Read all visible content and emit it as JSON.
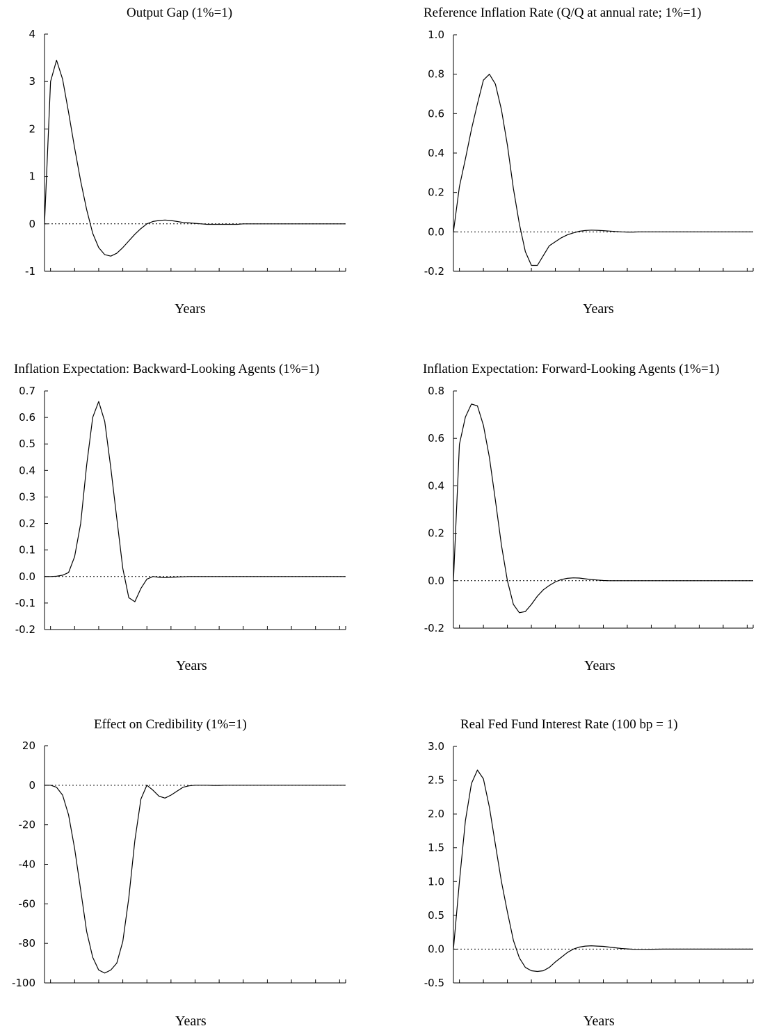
{
  "chart_data": [
    {
      "type": "line",
      "title": "Output Gap (1%=1)",
      "xlabel": "Years",
      "ylabel": "",
      "ylim": [
        -1,
        4
      ],
      "yticks": [
        "4",
        "3",
        "2",
        "1",
        "0",
        "-1"
      ],
      "ytick_values": [
        4,
        3,
        2,
        1,
        0,
        -1
      ],
      "zero_line": "dotted",
      "grid": false,
      "x": [
        0,
        1,
        2,
        3,
        4,
        5,
        6,
        7,
        8,
        9,
        10,
        11,
        12,
        13,
        14,
        15,
        16,
        17,
        18,
        19,
        20,
        21,
        22,
        23,
        24,
        25,
        26,
        27,
        28,
        29,
        30,
        31,
        32,
        33,
        34,
        35,
        36,
        37,
        38,
        39,
        40,
        41,
        42,
        43,
        44,
        45,
        46,
        47,
        48,
        49,
        50
      ],
      "series": [
        {
          "values": [
            0,
            3.0,
            3.45,
            3.05,
            2.35,
            1.6,
            0.9,
            0.3,
            -0.2,
            -0.5,
            -0.65,
            -0.68,
            -0.62,
            -0.5,
            -0.36,
            -0.22,
            -0.1,
            0.0,
            0.05,
            0.07,
            0.08,
            0.07,
            0.05,
            0.03,
            0.02,
            0.01,
            0.0,
            -0.01,
            -0.01,
            -0.01,
            -0.01,
            -0.01,
            -0.01,
            0.0,
            0.0,
            0.0,
            0.0,
            0.0,
            0.0,
            0.0,
            0.0,
            0.0,
            0.0,
            0.0,
            0.0,
            0.0,
            0.0,
            0.0,
            0.0,
            0.0,
            0.0
          ]
        }
      ]
    },
    {
      "type": "line",
      "title": "Reference Inflation Rate (Q/Q at annual rate; 1%=1)",
      "xlabel": "Years",
      "ylabel": "",
      "ylim": [
        -0.2,
        1.0
      ],
      "yticks": [
        "1.0",
        "0.8",
        "0.6",
        "0.4",
        "0.2",
        "0.0",
        "-0.2"
      ],
      "ytick_values": [
        1.0,
        0.8,
        0.6,
        0.4,
        0.2,
        0.0,
        -0.2
      ],
      "zero_line": "dotted",
      "grid": false,
      "x": [
        0,
        1,
        2,
        3,
        4,
        5,
        6,
        7,
        8,
        9,
        10,
        11,
        12,
        13,
        14,
        15,
        16,
        17,
        18,
        19,
        20,
        21,
        22,
        23,
        24,
        25,
        26,
        27,
        28,
        29,
        30,
        31,
        32,
        33,
        34,
        35,
        36,
        37,
        38,
        39,
        40,
        41,
        42,
        43,
        44,
        45,
        46,
        47,
        48,
        49,
        50
      ],
      "series": [
        {
          "values": [
            0,
            0.23,
            0.37,
            0.52,
            0.65,
            0.77,
            0.8,
            0.75,
            0.62,
            0.44,
            0.22,
            0.04,
            -0.1,
            -0.17,
            -0.17,
            -0.12,
            -0.07,
            -0.05,
            -0.03,
            -0.015,
            -0.005,
            0.003,
            0.007,
            0.009,
            0.008,
            0.006,
            0.004,
            0.002,
            0.0,
            -0.001,
            -0.001,
            0.0,
            0.0,
            0.0,
            0.0,
            0.0,
            0.0,
            0.0,
            0.0,
            0.0,
            0.0,
            0.0,
            0.0,
            0.0,
            0.0,
            0.0,
            0.0,
            0.0,
            0.0,
            0.0,
            0.0
          ]
        }
      ]
    },
    {
      "type": "line",
      "title": "Inflation Expectation: Backward-Looking Agents (1%=1)",
      "xlabel": "Years",
      "ylabel": "",
      "ylim": [
        -0.2,
        0.7
      ],
      "yticks": [
        "0.7",
        "0.6",
        "0.5",
        "0.4",
        "0.3",
        "0.2",
        "0.1",
        "0.0",
        "-0.1",
        "-0.2"
      ],
      "ytick_values": [
        0.7,
        0.6,
        0.5,
        0.4,
        0.3,
        0.2,
        0.1,
        0.0,
        -0.1,
        -0.2
      ],
      "zero_line": "dotted",
      "grid": false,
      "x": [
        0,
        1,
        2,
        3,
        4,
        5,
        6,
        7,
        8,
        9,
        10,
        11,
        12,
        13,
        14,
        15,
        16,
        17,
        18,
        19,
        20,
        21,
        22,
        23,
        24,
        25,
        26,
        27,
        28,
        29,
        30,
        31,
        32,
        33,
        34,
        35,
        36,
        37,
        38,
        39,
        40,
        41,
        42,
        43,
        44,
        45,
        46,
        47,
        48,
        49,
        50
      ],
      "series": [
        {
          "values": [
            0,
            0.0,
            0.001,
            0.005,
            0.015,
            0.075,
            0.2,
            0.42,
            0.6,
            0.66,
            0.585,
            0.41,
            0.22,
            0.03,
            -0.08,
            -0.095,
            -0.045,
            -0.01,
            0.0,
            -0.003,
            -0.004,
            -0.003,
            -0.002,
            -0.001,
            0.0,
            0.0,
            0.0,
            0.0,
            0.0,
            0.0,
            0.0,
            0.0,
            0.0,
            0.0,
            0.0,
            0.0,
            0.0,
            0.0,
            0.0,
            0.0,
            0.0,
            0.0,
            0.0,
            0.0,
            0.0,
            0.0,
            0.0,
            0.0,
            0.0,
            0.0,
            0.0
          ]
        }
      ]
    },
    {
      "type": "line",
      "title": "Inflation Expectation: Forward-Looking Agents (1%=1)",
      "xlabel": "Years",
      "ylabel": "",
      "ylim": [
        -0.2,
        0.8
      ],
      "yticks": [
        "0.8",
        "0.6",
        "0.4",
        "0.2",
        "0.0",
        "-0.2"
      ],
      "ytick_values": [
        0.8,
        0.6,
        0.4,
        0.2,
        0.0,
        -0.2
      ],
      "zero_line": "dotted",
      "grid": false,
      "x": [
        0,
        1,
        2,
        3,
        4,
        5,
        6,
        7,
        8,
        9,
        10,
        11,
        12,
        13,
        14,
        15,
        16,
        17,
        18,
        19,
        20,
        21,
        22,
        23,
        24,
        25,
        26,
        27,
        28,
        29,
        30,
        31,
        32,
        33,
        34,
        35,
        36,
        37,
        38,
        39,
        40,
        41,
        42,
        43,
        44,
        45,
        46,
        47,
        48,
        49,
        50
      ],
      "series": [
        {
          "values": [
            0,
            0.575,
            0.69,
            0.745,
            0.737,
            0.655,
            0.52,
            0.34,
            0.15,
            0.0,
            -0.1,
            -0.135,
            -0.13,
            -0.1,
            -0.065,
            -0.038,
            -0.02,
            -0.005,
            0.005,
            0.01,
            0.012,
            0.011,
            0.008,
            0.005,
            0.003,
            0.001,
            0.0,
            0.0,
            0.0,
            0.0,
            0.0,
            0.0,
            0.0,
            0.0,
            0.0,
            0.0,
            0.0,
            0.0,
            0.0,
            0.0,
            0.0,
            0.0,
            0.0,
            0.0,
            0.0,
            0.0,
            0.0,
            0.0,
            0.0,
            0.0,
            0.0
          ]
        }
      ]
    },
    {
      "type": "line",
      "title": "Effect on Credibility (1%=1)",
      "xlabel": "Years",
      "ylabel": "",
      "ylim": [
        -100,
        20
      ],
      "yticks": [
        "20",
        "0",
        "-20",
        "-40",
        "-60",
        "-80",
        "-100"
      ],
      "ytick_values": [
        20,
        0,
        -20,
        -40,
        -60,
        -80,
        -100
      ],
      "zero_line": "dotted",
      "grid": false,
      "x": [
        0,
        1,
        2,
        3,
        4,
        5,
        6,
        7,
        8,
        9,
        10,
        11,
        12,
        13,
        14,
        15,
        16,
        17,
        18,
        19,
        20,
        21,
        22,
        23,
        24,
        25,
        26,
        27,
        28,
        29,
        30,
        31,
        32,
        33,
        34,
        35,
        36,
        37,
        38,
        39,
        40,
        41,
        42,
        43,
        44,
        45,
        46,
        47,
        48,
        49,
        50
      ],
      "series": [
        {
          "values": [
            0,
            0,
            -1,
            -5,
            -15,
            -32,
            -53,
            -74,
            -87,
            -93.5,
            -95,
            -93.5,
            -90,
            -79,
            -57,
            -28,
            -7,
            0,
            -2.5,
            -5.5,
            -6.5,
            -5,
            -3,
            -1,
            -0.3,
            0,
            0,
            0,
            -0.1,
            -0.1,
            0,
            0,
            0,
            0,
            0,
            0,
            0,
            0,
            0,
            0,
            0,
            0,
            0,
            0,
            0,
            0,
            0,
            0,
            0,
            0,
            0
          ]
        }
      ]
    },
    {
      "type": "line",
      "title": "Real Fed Fund Interest Rate (100 bp = 1)",
      "xlabel": "Years",
      "ylabel": "",
      "ylim": [
        -0.5,
        3.0
      ],
      "yticks": [
        "3.0",
        "2.5",
        "2.0",
        "1.5",
        "1.0",
        "0.5",
        "0.0",
        "-0.5"
      ],
      "ytick_values": [
        3.0,
        2.5,
        2.0,
        1.5,
        1.0,
        0.5,
        0.0,
        -0.5
      ],
      "zero_line": "dotted",
      "grid": false,
      "x": [
        0,
        1,
        2,
        3,
        4,
        5,
        6,
        7,
        8,
        9,
        10,
        11,
        12,
        13,
        14,
        15,
        16,
        17,
        18,
        19,
        20,
        21,
        22,
        23,
        24,
        25,
        26,
        27,
        28,
        29,
        30,
        31,
        32,
        33,
        34,
        35,
        36,
        37,
        38,
        39,
        40,
        41,
        42,
        43,
        44,
        45,
        46,
        47,
        48,
        49,
        50
      ],
      "series": [
        {
          "values": [
            0,
            1.0,
            1.9,
            2.45,
            2.65,
            2.52,
            2.1,
            1.55,
            1.0,
            0.55,
            0.13,
            -0.13,
            -0.27,
            -0.32,
            -0.33,
            -0.32,
            -0.27,
            -0.19,
            -0.12,
            -0.05,
            0.0,
            0.03,
            0.045,
            0.05,
            0.045,
            0.04,
            0.03,
            0.02,
            0.01,
            0.003,
            -0.002,
            -0.003,
            -0.003,
            -0.002,
            -0.001,
            0.0,
            0.0,
            0.0,
            0.0,
            0.0,
            0.0,
            0.0,
            0.0,
            0.0,
            0.0,
            0.0,
            0.0,
            0.0,
            0.0,
            0.0,
            0.0
          ]
        }
      ]
    }
  ]
}
